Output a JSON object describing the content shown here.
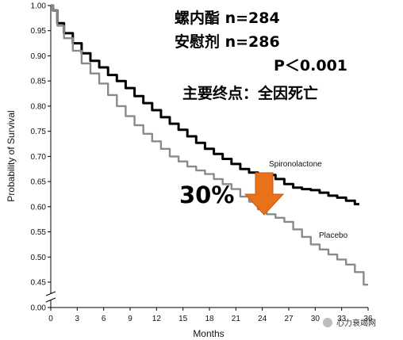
{
  "chart_data": {
    "type": "line",
    "xlabel": "Months",
    "ylabel": "Probability of Survival",
    "xlim": [
      0,
      36
    ],
    "ylim": [
      0.45,
      1.0
    ],
    "x_ticks": [
      "0",
      "3",
      "6",
      "9",
      "12",
      "15",
      "18",
      "21",
      "24",
      "27",
      "30",
      "33",
      "36"
    ],
    "y_ticks": [
      "1.00",
      "0.95",
      "0.90",
      "0.85",
      "0.80",
      "0.75",
      "0.70",
      "0.65",
      "0.60",
      "0.55",
      "0.50",
      "0.45"
    ],
    "y_zero_label": "0.00",
    "axis_break": true,
    "series": [
      {
        "name": "Spironolactone",
        "color": "#000000",
        "x": [
          0,
          0.5,
          1,
          2,
          3,
          4,
          5,
          6,
          7,
          8,
          9,
          10,
          11,
          12,
          13,
          14,
          15,
          16,
          17,
          18,
          19,
          20,
          21,
          22,
          23,
          24,
          25,
          26,
          27,
          28,
          29,
          30,
          31,
          32,
          33,
          34,
          35
        ],
        "y": [
          1.0,
          0.99,
          0.965,
          0.945,
          0.925,
          0.905,
          0.89,
          0.877,
          0.862,
          0.85,
          0.836,
          0.82,
          0.806,
          0.792,
          0.778,
          0.765,
          0.753,
          0.74,
          0.727,
          0.715,
          0.705,
          0.695,
          0.685,
          0.675,
          0.668,
          0.665,
          0.663,
          0.655,
          0.645,
          0.638,
          0.635,
          0.633,
          0.628,
          0.622,
          0.618,
          0.612,
          0.605
        ]
      },
      {
        "name": "Placebo",
        "color": "#8a8a8a",
        "x": [
          0,
          0.5,
          1,
          2,
          3,
          4,
          5,
          6,
          7,
          8,
          9,
          10,
          11,
          12,
          13,
          14,
          15,
          16,
          17,
          18,
          19,
          20,
          21,
          22,
          23,
          24,
          25,
          26,
          27,
          28,
          29,
          30,
          31,
          32,
          33,
          34,
          35,
          36
        ],
        "y": [
          1.0,
          0.99,
          0.96,
          0.935,
          0.91,
          0.885,
          0.865,
          0.845,
          0.822,
          0.8,
          0.78,
          0.762,
          0.745,
          0.73,
          0.715,
          0.7,
          0.69,
          0.68,
          0.672,
          0.665,
          0.655,
          0.645,
          0.635,
          0.62,
          0.61,
          0.595,
          0.585,
          0.578,
          0.57,
          0.555,
          0.54,
          0.525,
          0.515,
          0.505,
          0.495,
          0.485,
          0.47,
          0.445
        ]
      }
    ],
    "annotations": {
      "line1": "螺内酯 n=284",
      "line2": "安慰剂 n=286",
      "pvalue": "P＜0.001",
      "endpoint": "主要终点：全因死亡",
      "reduction": "30%"
    },
    "arrow_color": "#e8711a",
    "watermark": "心力衰竭网"
  }
}
